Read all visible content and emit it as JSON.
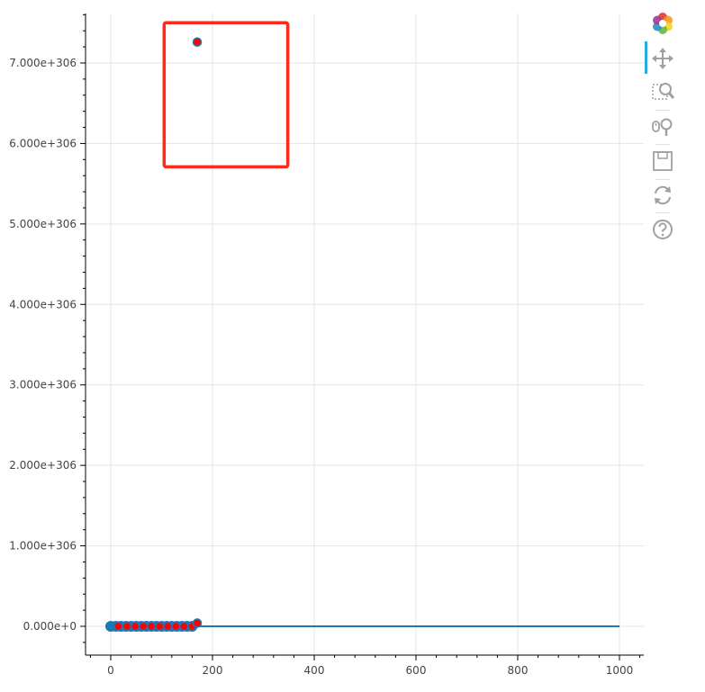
{
  "chart_data": {
    "type": "scatter",
    "title": "",
    "xlabel": "",
    "ylabel": "",
    "xlim": [
      -40,
      1050
    ],
    "ylim": [
      -350000,
      7600000
    ],
    "x_ticks": [
      0,
      200,
      400,
      600,
      800,
      1000
    ],
    "x_tick_labels": [
      "0",
      "200",
      "400",
      "600",
      "800",
      "1000"
    ],
    "y_ticks": [
      0,
      1000000,
      2000000,
      3000000,
      4000000,
      5000000,
      6000000,
      7000000
    ],
    "y_tick_labels": [
      "0.000e+0",
      "1.000e+306",
      "2.000e+306",
      "3.000e+306",
      "4.000e+306",
      "5.000e+306",
      "6.000e+306",
      "7.000e+306"
    ],
    "grid": true,
    "series": [
      {
        "type": "line",
        "color": "#1f77b4",
        "x": [
          0,
          1000
        ],
        "y": [
          0,
          0
        ]
      },
      {
        "type": "scatter",
        "color": "#1f77b4",
        "x": [
          0,
          10,
          20,
          30,
          40,
          50,
          60,
          70,
          80,
          90,
          100,
          110,
          120,
          130,
          140,
          150,
          160
        ],
        "y": [
          0,
          0,
          0,
          0,
          0,
          0,
          0,
          0,
          0,
          0,
          0,
          0,
          0,
          0,
          0,
          0,
          0
        ]
      },
      {
        "type": "scatter",
        "color": "#ff0000",
        "x": [
          15,
          32,
          48,
          64,
          80,
          96,
          112,
          128,
          144,
          160,
          170,
          170
        ],
        "y": [
          0,
          0,
          0,
          0,
          0,
          0,
          0,
          0,
          0,
          0,
          40000,
          7260000
        ]
      }
    ],
    "annotations": [
      {
        "type": "rect",
        "color": "#ff2a1a",
        "x0": 105,
        "x1": 348,
        "y0": 5710000,
        "y1": 7500000
      }
    ]
  },
  "toolbar": {
    "tools": [
      {
        "name": "bokeh-logo-icon",
        "interactable": false
      },
      {
        "name": "pan-tool-icon",
        "interactable": true,
        "active": true
      },
      {
        "name": "box-zoom-tool-icon",
        "interactable": true
      },
      {
        "name": "wheel-zoom-tool-icon",
        "interactable": true
      },
      {
        "name": "save-tool-icon",
        "interactable": true
      },
      {
        "name": "reset-tool-icon",
        "interactable": true
      },
      {
        "name": "help-tool-icon",
        "interactable": true
      }
    ]
  },
  "colors": {
    "grid": "#e5e5e5",
    "axis": "#000000",
    "toolbar_active": "#26aae1",
    "tool_icon": "#a0a0a0"
  }
}
